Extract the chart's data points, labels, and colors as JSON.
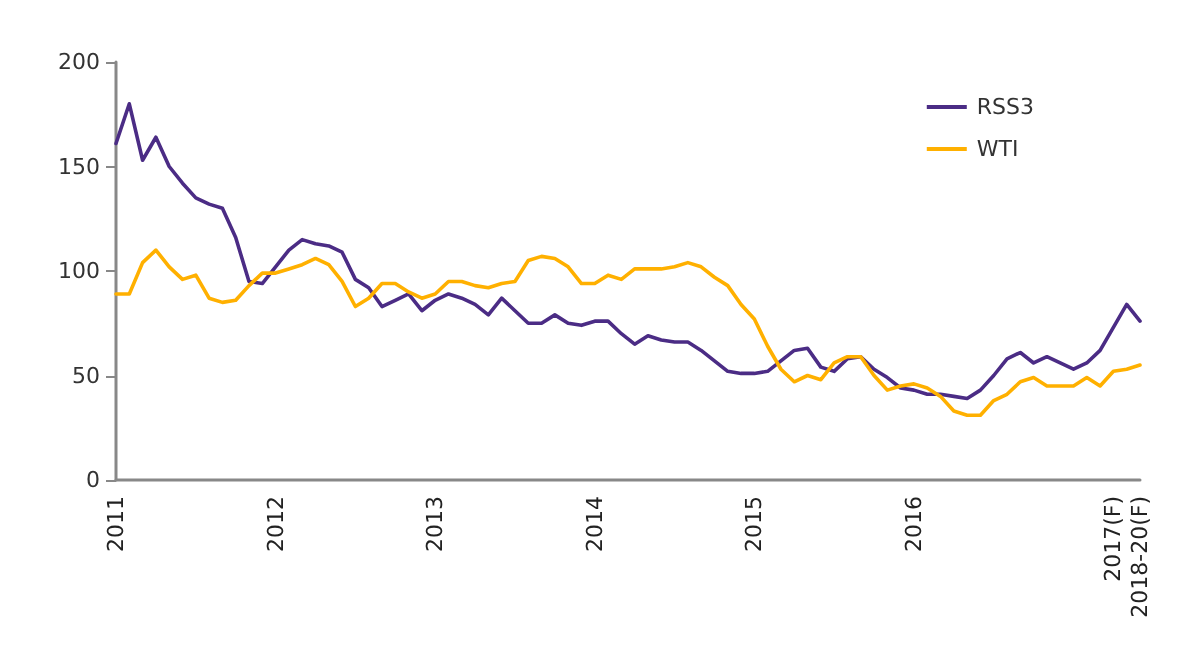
{
  "chart_data": {
    "type": "line",
    "categories": [
      "2011",
      null,
      null,
      null,
      null,
      null,
      null,
      null,
      null,
      null,
      null,
      null,
      "2012",
      null,
      null,
      null,
      null,
      null,
      null,
      null,
      null,
      null,
      null,
      null,
      "2013",
      null,
      null,
      null,
      null,
      null,
      null,
      null,
      null,
      null,
      null,
      null,
      "2014",
      null,
      null,
      null,
      null,
      null,
      null,
      null,
      null,
      null,
      null,
      null,
      "2015",
      null,
      null,
      null,
      null,
      null,
      null,
      null,
      null,
      null,
      null,
      null,
      "2016",
      null,
      null,
      null,
      null,
      null,
      null,
      null,
      null,
      null,
      null,
      null,
      null,
      null,
      null,
      "2017(F)",
      null,
      "2018-20(F)"
    ],
    "series": [
      {
        "name": "RSS3",
        "color": "#4b2c85",
        "values": [
          161,
          180,
          153,
          164,
          150,
          142,
          135,
          132,
          130,
          116,
          95,
          94,
          102,
          110,
          115,
          113,
          112,
          109,
          96,
          92,
          83,
          86,
          89,
          81,
          86,
          89,
          87,
          84,
          79,
          87,
          81,
          75,
          75,
          79,
          75,
          74,
          76,
          76,
          70,
          65,
          69,
          67,
          66,
          66,
          62,
          57,
          52,
          51,
          51,
          52,
          57,
          62,
          63,
          54,
          52,
          58,
          59,
          53,
          49,
          44,
          43,
          41,
          41,
          40,
          39,
          43,
          50,
          58,
          61,
          56,
          59,
          56,
          53,
          56,
          62,
          73,
          84,
          76
        ]
      },
      {
        "name": "WTI",
        "color": "#ffb000",
        "values": [
          89,
          89,
          104,
          110,
          102,
          96,
          98,
          87,
          85,
          86,
          93,
          99,
          99,
          101,
          103,
          106,
          103,
          95,
          83,
          87,
          94,
          94,
          90,
          87,
          89,
          95,
          95,
          93,
          92,
          94,
          95,
          105,
          107,
          106,
          102,
          94,
          94,
          98,
          96,
          101,
          101,
          101,
          102,
          104,
          102,
          97,
          93,
          84,
          77,
          64,
          53,
          47,
          50,
          48,
          56,
          59,
          59,
          50,
          43,
          45,
          46,
          44,
          40,
          33,
          31,
          31,
          38,
          41,
          47,
          49,
          45,
          45,
          45,
          49,
          45,
          52,
          53,
          55
        ]
      }
    ],
    "ylim": [
      0,
      200
    ],
    "yticks": [
      0,
      50,
      100,
      150,
      200
    ],
    "legend": "top right",
    "marker": "none"
  }
}
